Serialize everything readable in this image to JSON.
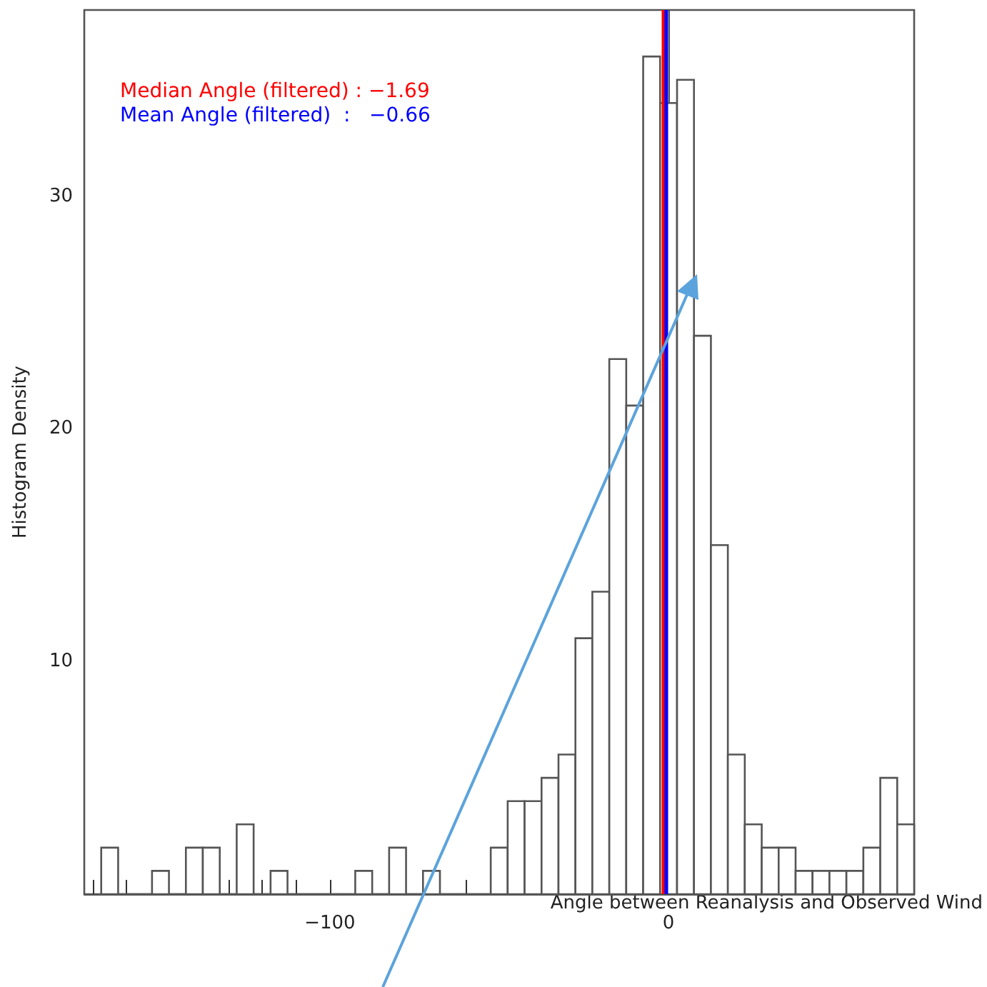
{
  "chart_data": {
    "type": "histogram",
    "xlabel": "Angle between Reanalysis and Observed Wind",
    "ylabel": "Histogram Density",
    "bins": [
      -167.5,
      -162.5,
      -157.5,
      -152.5,
      -147.5,
      -142.5,
      -137.5,
      -132.5,
      -127.5,
      -122.5,
      -117.5,
      -112.5,
      -107.5,
      -102.5,
      -97.5,
      -92.5,
      -87.5,
      -82.5,
      -77.5,
      -72.5,
      -67.5,
      -62.5,
      -57.5,
      -52.5,
      -47.5,
      -42.5,
      -37.5,
      -32.5,
      -27.5,
      -22.5,
      -17.5,
      -12.5,
      -7.5,
      -2.5,
      2.5,
      7.5,
      12.5,
      17.5,
      22.5,
      27.5,
      32.5,
      37.5,
      42.5,
      47.5,
      52.5,
      57.5,
      62.5,
      67.5,
      72.5
    ],
    "values": [
      2,
      0,
      0,
      1,
      0,
      2,
      2,
      0,
      3,
      0,
      1,
      0,
      0,
      0,
      0,
      1,
      0,
      2,
      0,
      1,
      0,
      0,
      0,
      2,
      4,
      4,
      5,
      6,
      11,
      13,
      23,
      21,
      36,
      34,
      35,
      24,
      15,
      6,
      3,
      2,
      2,
      1,
      1,
      1,
      1,
      2,
      5,
      3
    ],
    "xlim": [
      -172.5,
      72.5
    ],
    "xticks": [
      {
        "value": -170,
        "label": null
      },
      {
        "value": -160,
        "label": null
      },
      {
        "value": -150,
        "label": null
      },
      {
        "value": -140,
        "label": null
      },
      {
        "value": -130,
        "label": null
      },
      {
        "value": -120,
        "label": null
      },
      {
        "value": -110,
        "label": null
      },
      {
        "value": -100,
        "label": "−100"
      },
      {
        "value": -90,
        "label": null
      },
      {
        "value": -80,
        "label": null
      },
      {
        "value": -70,
        "label": null
      },
      {
        "value": -60,
        "label": null
      },
      {
        "value": -50,
        "label": null
      },
      {
        "value": -40,
        "label": null
      },
      {
        "value": -30,
        "label": null
      },
      {
        "value": -20,
        "label": null
      },
      {
        "value": -10,
        "label": null
      },
      {
        "value": 0,
        "label": "0"
      },
      {
        "value": 10,
        "label": null
      },
      {
        "value": 20,
        "label": null
      },
      {
        "value": 30,
        "label": null
      },
      {
        "value": 40,
        "label": null
      },
      {
        "value": 50,
        "label": null
      },
      {
        "value": 60,
        "label": null
      },
      {
        "value": 70,
        "label": null
      }
    ],
    "ylim": [
      0,
      38
    ],
    "yticks": [
      10,
      20,
      30
    ],
    "grid": false,
    "ref_lines": [
      {
        "axis": "x",
        "value": -1.69,
        "label": "Median Angle (filtered) : −1.69",
        "color": "#ff0000"
      },
      {
        "axis": "x",
        "value": -0.66,
        "label": "Mean Angle (filtered)  :   −0.66",
        "color": "#0000ff"
      }
    ]
  }
}
